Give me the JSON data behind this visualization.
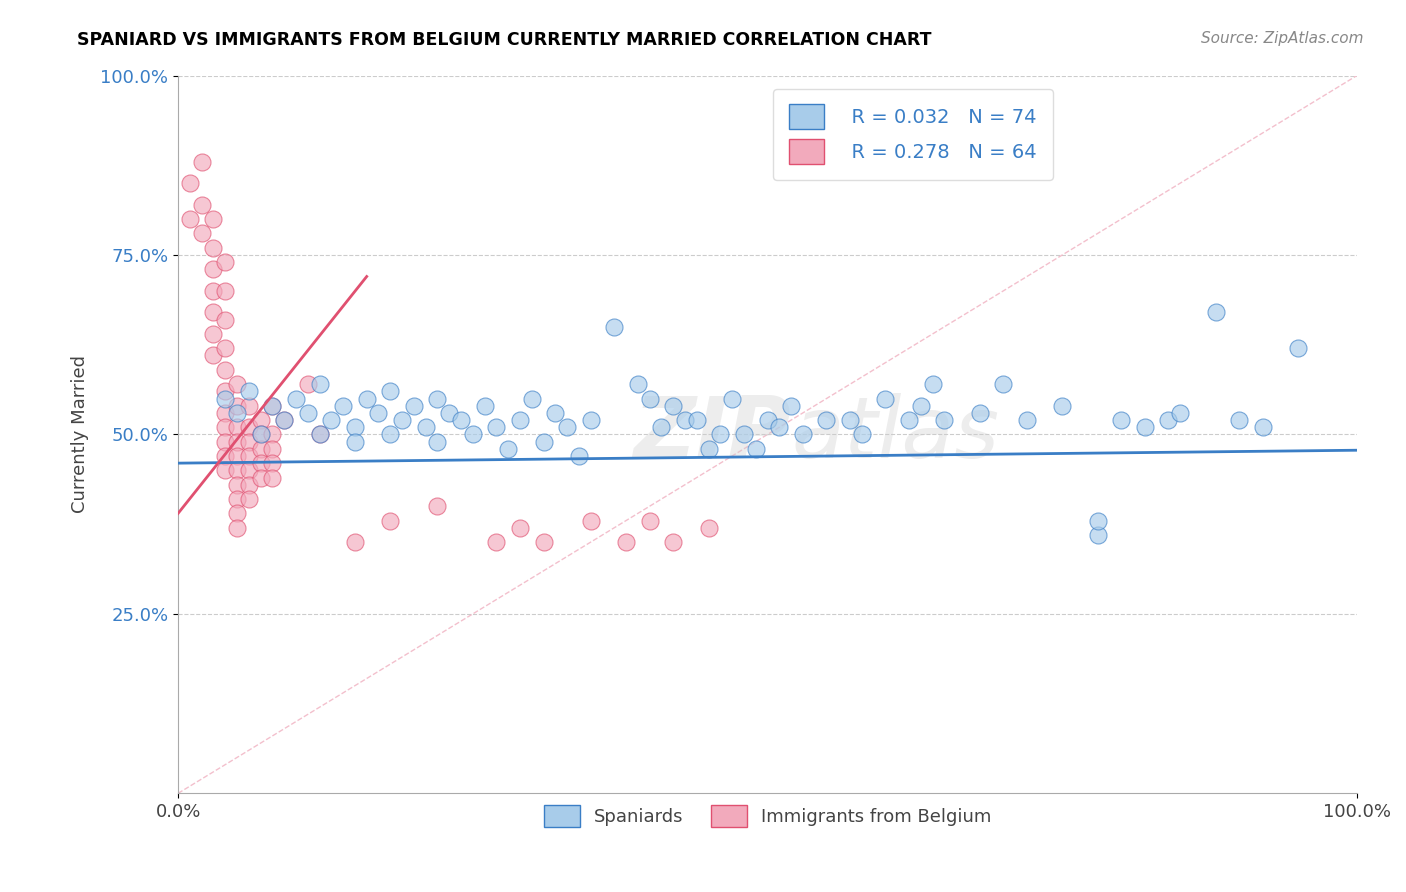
{
  "title": "SPANIARD VS IMMIGRANTS FROM BELGIUM CURRENTLY MARRIED CORRELATION CHART",
  "source_text": "Source: ZipAtlas.com",
  "ylabel": "Currently Married",
  "xlim": [
    0.0,
    1.0
  ],
  "ylim": [
    0.0,
    1.0
  ],
  "watermark": "ZIPatlas",
  "legend_r1": "R = 0.032",
  "legend_n1": "N = 74",
  "legend_r2": "R = 0.278",
  "legend_n2": "N = 64",
  "color_blue": "#A8CCEA",
  "color_pink": "#F2AABC",
  "line_blue": "#3A7EC6",
  "line_pink": "#E05070",
  "line_diag_color": "#F0B0C0",
  "blue_scatter": [
    [
      0.04,
      0.55
    ],
    [
      0.05,
      0.53
    ],
    [
      0.06,
      0.56
    ],
    [
      0.07,
      0.5
    ],
    [
      0.08,
      0.54
    ],
    [
      0.09,
      0.52
    ],
    [
      0.1,
      0.55
    ],
    [
      0.11,
      0.53
    ],
    [
      0.12,
      0.57
    ],
    [
      0.12,
      0.5
    ],
    [
      0.13,
      0.52
    ],
    [
      0.14,
      0.54
    ],
    [
      0.15,
      0.51
    ],
    [
      0.15,
      0.49
    ],
    [
      0.16,
      0.55
    ],
    [
      0.17,
      0.53
    ],
    [
      0.18,
      0.5
    ],
    [
      0.18,
      0.56
    ],
    [
      0.19,
      0.52
    ],
    [
      0.2,
      0.54
    ],
    [
      0.21,
      0.51
    ],
    [
      0.22,
      0.55
    ],
    [
      0.22,
      0.49
    ],
    [
      0.23,
      0.53
    ],
    [
      0.24,
      0.52
    ],
    [
      0.25,
      0.5
    ],
    [
      0.26,
      0.54
    ],
    [
      0.27,
      0.51
    ],
    [
      0.28,
      0.48
    ],
    [
      0.29,
      0.52
    ],
    [
      0.3,
      0.55
    ],
    [
      0.31,
      0.49
    ],
    [
      0.32,
      0.53
    ],
    [
      0.33,
      0.51
    ],
    [
      0.34,
      0.47
    ],
    [
      0.35,
      0.52
    ],
    [
      0.37,
      0.65
    ],
    [
      0.39,
      0.57
    ],
    [
      0.4,
      0.55
    ],
    [
      0.41,
      0.51
    ],
    [
      0.42,
      0.54
    ],
    [
      0.43,
      0.52
    ],
    [
      0.44,
      0.52
    ],
    [
      0.45,
      0.48
    ],
    [
      0.46,
      0.5
    ],
    [
      0.47,
      0.55
    ],
    [
      0.48,
      0.5
    ],
    [
      0.49,
      0.48
    ],
    [
      0.5,
      0.52
    ],
    [
      0.51,
      0.51
    ],
    [
      0.52,
      0.54
    ],
    [
      0.53,
      0.5
    ],
    [
      0.55,
      0.52
    ],
    [
      0.57,
      0.52
    ],
    [
      0.58,
      0.5
    ],
    [
      0.6,
      0.55
    ],
    [
      0.62,
      0.52
    ],
    [
      0.63,
      0.54
    ],
    [
      0.64,
      0.57
    ],
    [
      0.65,
      0.52
    ],
    [
      0.68,
      0.53
    ],
    [
      0.7,
      0.57
    ],
    [
      0.72,
      0.52
    ],
    [
      0.75,
      0.54
    ],
    [
      0.78,
      0.36
    ],
    [
      0.78,
      0.38
    ],
    [
      0.8,
      0.52
    ],
    [
      0.82,
      0.51
    ],
    [
      0.84,
      0.52
    ],
    [
      0.85,
      0.53
    ],
    [
      0.88,
      0.67
    ],
    [
      0.9,
      0.52
    ],
    [
      0.92,
      0.51
    ],
    [
      0.95,
      0.62
    ]
  ],
  "pink_scatter": [
    [
      0.01,
      0.85
    ],
    [
      0.01,
      0.8
    ],
    [
      0.02,
      0.88
    ],
    [
      0.02,
      0.82
    ],
    [
      0.02,
      0.78
    ],
    [
      0.03,
      0.8
    ],
    [
      0.03,
      0.76
    ],
    [
      0.03,
      0.73
    ],
    [
      0.03,
      0.7
    ],
    [
      0.03,
      0.67
    ],
    [
      0.03,
      0.64
    ],
    [
      0.03,
      0.61
    ],
    [
      0.04,
      0.74
    ],
    [
      0.04,
      0.7
    ],
    [
      0.04,
      0.66
    ],
    [
      0.04,
      0.62
    ],
    [
      0.04,
      0.59
    ],
    [
      0.04,
      0.56
    ],
    [
      0.04,
      0.53
    ],
    [
      0.04,
      0.51
    ],
    [
      0.04,
      0.49
    ],
    [
      0.04,
      0.47
    ],
    [
      0.04,
      0.45
    ],
    [
      0.05,
      0.57
    ],
    [
      0.05,
      0.54
    ],
    [
      0.05,
      0.51
    ],
    [
      0.05,
      0.49
    ],
    [
      0.05,
      0.47
    ],
    [
      0.05,
      0.45
    ],
    [
      0.05,
      0.43
    ],
    [
      0.05,
      0.41
    ],
    [
      0.05,
      0.39
    ],
    [
      0.05,
      0.37
    ],
    [
      0.06,
      0.54
    ],
    [
      0.06,
      0.51
    ],
    [
      0.06,
      0.49
    ],
    [
      0.06,
      0.47
    ],
    [
      0.06,
      0.45
    ],
    [
      0.06,
      0.43
    ],
    [
      0.06,
      0.41
    ],
    [
      0.07,
      0.52
    ],
    [
      0.07,
      0.5
    ],
    [
      0.07,
      0.48
    ],
    [
      0.07,
      0.46
    ],
    [
      0.07,
      0.44
    ],
    [
      0.08,
      0.54
    ],
    [
      0.08,
      0.5
    ],
    [
      0.08,
      0.48
    ],
    [
      0.08,
      0.46
    ],
    [
      0.08,
      0.44
    ],
    [
      0.09,
      0.52
    ],
    [
      0.11,
      0.57
    ],
    [
      0.12,
      0.5
    ],
    [
      0.15,
      0.35
    ],
    [
      0.18,
      0.38
    ],
    [
      0.22,
      0.4
    ],
    [
      0.27,
      0.35
    ],
    [
      0.29,
      0.37
    ],
    [
      0.31,
      0.35
    ],
    [
      0.35,
      0.38
    ],
    [
      0.38,
      0.35
    ],
    [
      0.4,
      0.38
    ],
    [
      0.42,
      0.35
    ],
    [
      0.45,
      0.37
    ]
  ],
  "blue_trend_x": [
    0.0,
    1.0
  ],
  "blue_trend_y": [
    0.46,
    0.478
  ],
  "pink_trend_x": [
    0.0,
    0.16
  ],
  "pink_trend_y": [
    0.39,
    0.72
  ]
}
